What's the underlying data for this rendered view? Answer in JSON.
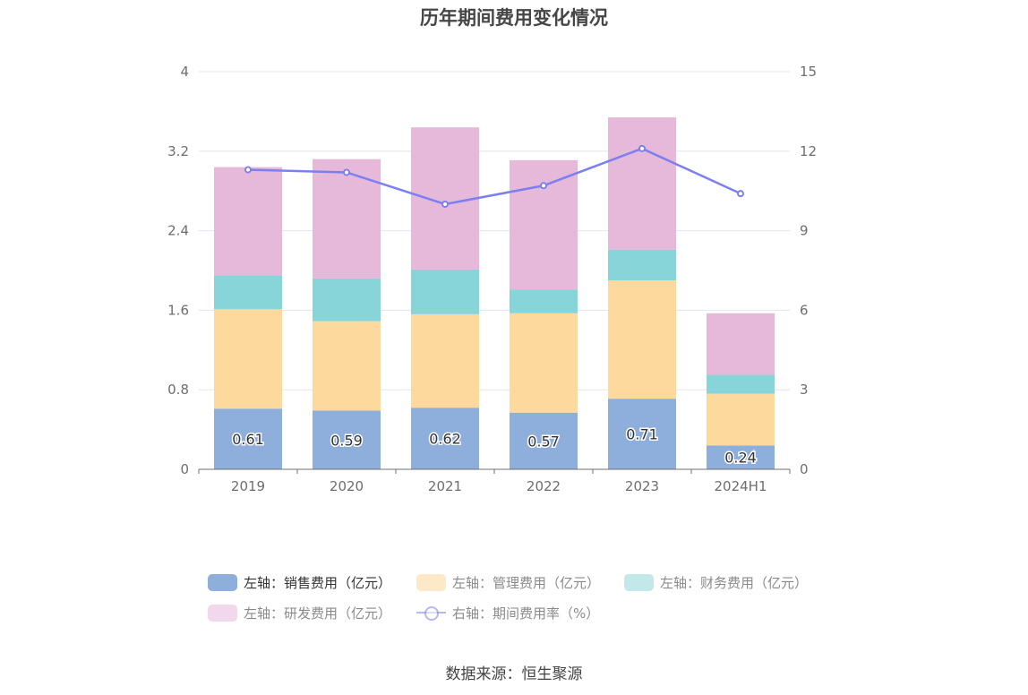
{
  "chart_data": {
    "type": "bar",
    "title": "历年期间费用变化情况",
    "categories": [
      "2019",
      "2020",
      "2021",
      "2022",
      "2023",
      "2024H1"
    ],
    "stacked": true,
    "series": [
      {
        "name": "左轴：销售费用（亿元）",
        "axis": "left",
        "color": "#8eaedc",
        "values": [
          0.61,
          0.59,
          0.62,
          0.57,
          0.71,
          0.24
        ],
        "labels": [
          "0.61",
          "0.59",
          "0.62",
          "0.57",
          "0.71",
          "0.24"
        ]
      },
      {
        "name": "左轴：管理费用（亿元）",
        "axis": "left",
        "color": "#fed99d",
        "values": [
          1.0,
          0.9,
          0.94,
          1.0,
          1.19,
          0.52
        ]
      },
      {
        "name": "左轴：财务费用（亿元）",
        "axis": "left",
        "color": "#87d5d9",
        "values": [
          0.34,
          0.43,
          0.45,
          0.24,
          0.31,
          0.19
        ]
      },
      {
        "name": "左轴：研发费用（亿元）",
        "axis": "left",
        "color": "#e6b9da",
        "values": [
          1.09,
          1.2,
          1.43,
          1.3,
          1.33,
          0.62
        ]
      },
      {
        "name": "右轴：期间费用率（%）",
        "axis": "right",
        "type": "line",
        "color": "#7b7ff0",
        "values": [
          11.3,
          11.2,
          10.0,
          10.7,
          12.1,
          10.4
        ]
      }
    ],
    "left_axis": {
      "ylim": [
        0,
        4
      ],
      "ticks": [
        "0",
        "0.8",
        "1.6",
        "2.4",
        "3.2",
        "4"
      ]
    },
    "right_axis": {
      "ylim": [
        0,
        15
      ],
      "ticks": [
        "0",
        "3",
        "6",
        "9",
        "12",
        "15"
      ]
    },
    "legend": {
      "position": "bottom"
    },
    "source": "数据来源：恒生聚源"
  }
}
